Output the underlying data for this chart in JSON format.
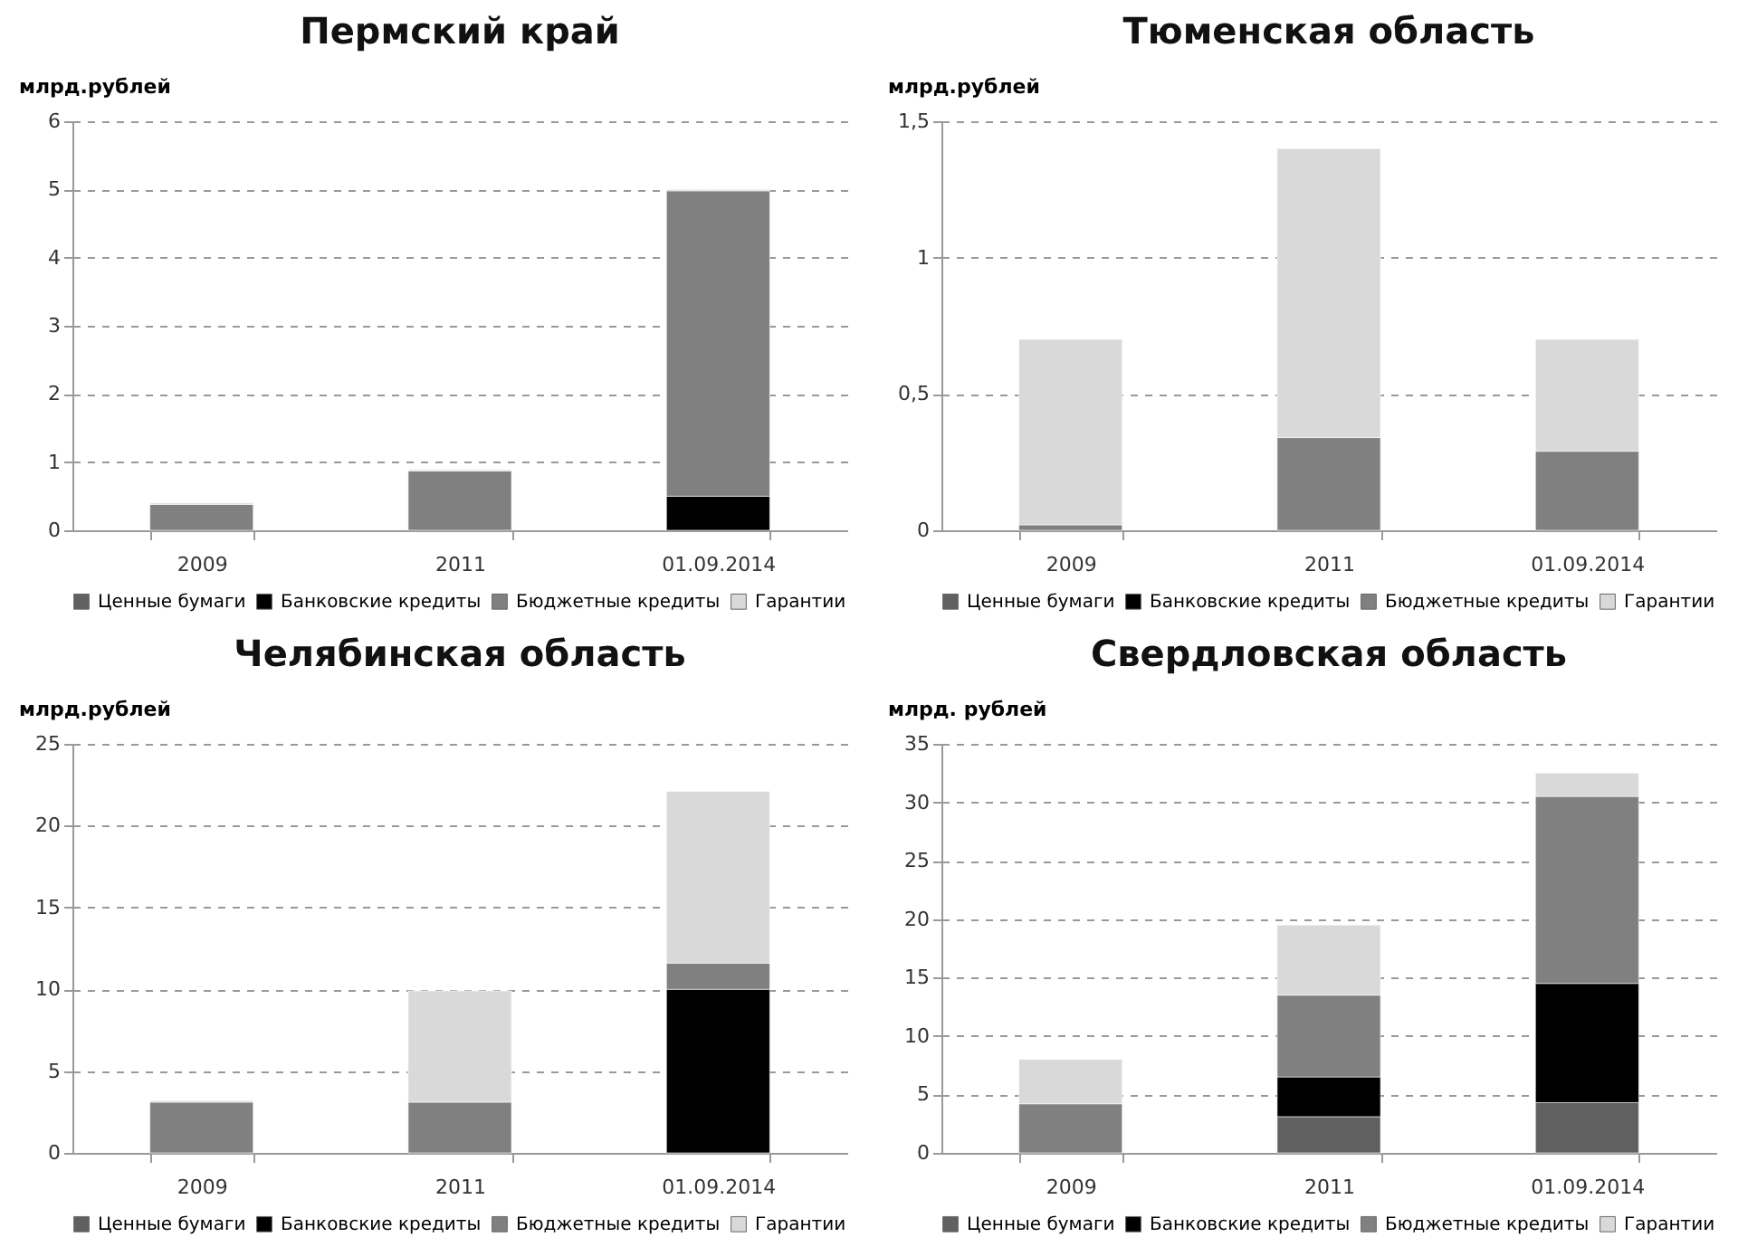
{
  "chart_data": [
    {
      "type": "bar",
      "title": "Пермский край",
      "ylabel": "млрд.рублей",
      "categories": [
        "2009",
        "2011",
        "01.09.2014"
      ],
      "stacked": true,
      "ylim": [
        0,
        6
      ],
      "yticks": [
        0,
        1,
        2,
        3,
        4,
        5,
        6
      ],
      "grid": "y",
      "legend": "bottom",
      "series": [
        {
          "name": "Ценные бумаги",
          "color": "#606060",
          "values": [
            null,
            null,
            null
          ]
        },
        {
          "name": "Банковские кредиты",
          "color": "#000000",
          "values": [
            null,
            null,
            0.5
          ]
        },
        {
          "name": "Бюджетные кредиты",
          "color": "#808080",
          "values": [
            0.38,
            0.87,
            4.48
          ]
        },
        {
          "name": "Гарантии",
          "color": "#d9d9d9",
          "values": [
            0.02,
            0.02,
            0.02
          ]
        }
      ]
    },
    {
      "type": "bar",
      "title": "Тюменская область",
      "ylabel": "млрд.рублей",
      "categories": [
        "2009",
        "2011",
        "01.09.2014"
      ],
      "stacked": true,
      "ylim": [
        0,
        1.5
      ],
      "yticks": [
        0,
        {
          "value": 0.5,
          "label": "0,5"
        },
        1,
        {
          "value": 1.5,
          "label": "1,5"
        }
      ],
      "grid": "y",
      "legend": "bottom",
      "series": [
        {
          "name": "Ценные бумаги",
          "color": "#606060",
          "values": [
            null,
            null,
            null
          ]
        },
        {
          "name": "Банковские кредиты",
          "color": "#000000",
          "values": [
            null,
            null,
            null
          ]
        },
        {
          "name": "Бюджетные кредиты",
          "color": "#808080",
          "values": [
            0.02,
            0.34,
            0.29
          ]
        },
        {
          "name": "Гарантии",
          "color": "#d9d9d9",
          "values": [
            0.68,
            1.06,
            0.41
          ]
        }
      ]
    },
    {
      "type": "bar",
      "title": "Челябинская область",
      "ylabel": "млрд.рублей",
      "categories": [
        "2009",
        "2011",
        "01.09.2014"
      ],
      "stacked": true,
      "ylim": [
        0,
        25
      ],
      "yticks": [
        0,
        5,
        10,
        15,
        20,
        25
      ],
      "grid": "y",
      "legend": "bottom",
      "series": [
        {
          "name": "Ценные бумаги",
          "color": "#606060",
          "values": [
            null,
            null,
            null
          ]
        },
        {
          "name": "Банковские кредиты",
          "color": "#000000",
          "values": [
            null,
            null,
            10
          ]
        },
        {
          "name": "Бюджетные кредиты",
          "color": "#808080",
          "values": [
            3.1,
            3.1,
            1.6
          ]
        },
        {
          "name": "Гарантии",
          "color": "#d9d9d9",
          "values": [
            0.1,
            6.8,
            10.5
          ]
        }
      ]
    },
    {
      "type": "bar",
      "title": "Свердловская область",
      "ylabel": "млрд. рублей",
      "categories": [
        "2009",
        "2011",
        "01.09.2014"
      ],
      "stacked": true,
      "ylim": [
        0,
        35
      ],
      "yticks": [
        0,
        5,
        10,
        15,
        20,
        25,
        30,
        35
      ],
      "grid": "y",
      "legend": "bottom",
      "series": [
        {
          "name": "Ценные бумаги",
          "color": "#606060",
          "values": [
            null,
            3.1,
            4.3
          ]
        },
        {
          "name": "Банковские кредиты",
          "color": "#000000",
          "values": [
            null,
            3.4,
            10.2
          ]
        },
        {
          "name": "Бюджетные кредиты",
          "color": "#808080",
          "values": [
            4.2,
            7.0,
            16.0
          ]
        },
        {
          "name": "Гарантии",
          "color": "#d9d9d9",
          "values": [
            3.8,
            6.0,
            2.0
          ]
        }
      ]
    }
  ]
}
